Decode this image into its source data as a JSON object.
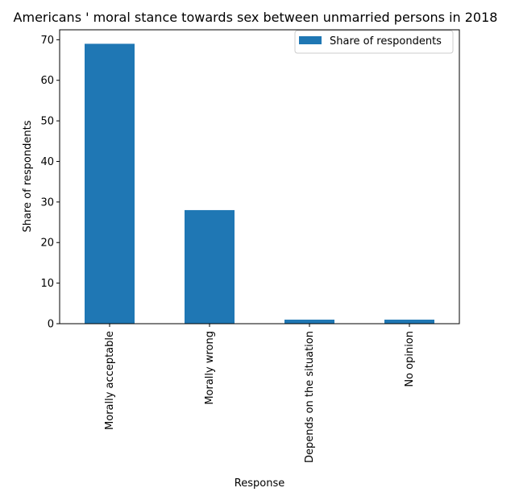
{
  "chart_data": {
    "type": "bar",
    "title": "Americans ' moral stance towards sex between unmarried persons in 2018",
    "xlabel": "Response",
    "ylabel": "Share of respondents",
    "categories": [
      "Morally acceptable",
      "Morally wrong",
      "Depends on the situation",
      "No opinion"
    ],
    "series": [
      {
        "name": "Share of respondents",
        "values": [
          69,
          28,
          1,
          1
        ],
        "color": "#1f77b4"
      }
    ],
    "ylim": [
      0,
      72.45
    ],
    "yticks": [
      0,
      10,
      20,
      30,
      40,
      50,
      60,
      70
    ],
    "grid": false,
    "legend": "top-right"
  }
}
